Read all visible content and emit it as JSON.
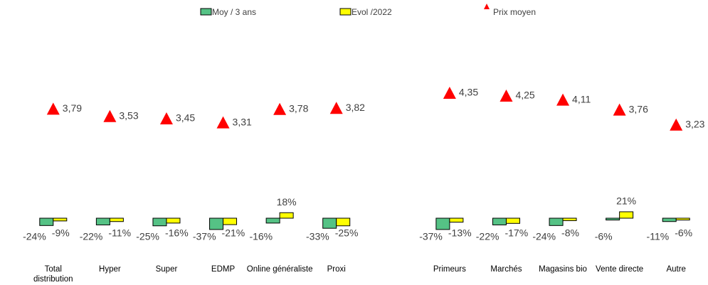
{
  "chart_data": {
    "type": "bar",
    "categories": [
      "Total distribution",
      "Hyper",
      "Super",
      "EDMP",
      "Online généraliste",
      "Proxi",
      null,
      "Primeurs",
      "Marchés",
      "Magasins bio",
      "Vente directe",
      "Autre"
    ],
    "ylim": [
      -100,
      100
    ],
    "y2lim": [
      0,
      5
    ],
    "series": [
      {
        "name": "Moy / 3 ans",
        "color": "#55c285",
        "values": [
          -24,
          -22,
          -25,
          -37,
          -16,
          -33,
          null,
          -37,
          -22,
          -24,
          -6,
          -11
        ],
        "value_labels": [
          "-24%",
          "-22%",
          "-25%",
          "-37%",
          "-16%",
          "-33%",
          null,
          "-37%",
          "-22%",
          "-24%",
          "-6%",
          "-11%"
        ]
      },
      {
        "name": "Evol /2022",
        "color": "#ffff00",
        "values": [
          -9,
          -11,
          -16,
          -21,
          18,
          -25,
          null,
          -13,
          -17,
          -8,
          21,
          -6
        ],
        "value_labels": [
          "-9%",
          "-11%",
          "-16%",
          "-21%",
          "18%",
          "-25%",
          null,
          "-13%",
          "-17%",
          "-8%",
          "21%",
          "-6%"
        ]
      },
      {
        "name": "Prix moyen",
        "type": "scatter",
        "axis": "y2",
        "color": "#ff0000",
        "values": [
          3.79,
          3.53,
          3.45,
          3.31,
          3.78,
          3.82,
          null,
          4.35,
          4.25,
          4.11,
          3.76,
          3.23
        ],
        "value_labels": [
          "3,79",
          "3,53",
          "3,45",
          "3,31",
          "3,78",
          "3,82",
          null,
          "4,35",
          "4,25",
          "4,11",
          "3,76",
          "3,23"
        ]
      }
    ]
  }
}
